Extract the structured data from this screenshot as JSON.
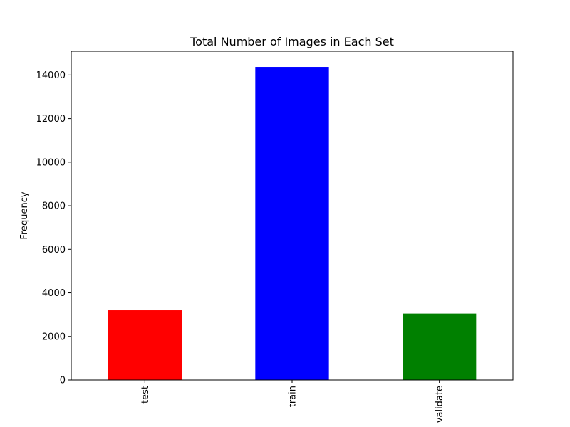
{
  "chart_data": {
    "type": "bar",
    "title": "Total Number of Images in Each Set",
    "xlabel": "",
    "ylabel": "Frequency",
    "categories": [
      "test",
      "train",
      "validate"
    ],
    "values": [
      3200,
      14370,
      3050
    ],
    "colors": [
      "#ff0000",
      "#0000ff",
      "#008000"
    ],
    "ylim": [
      0,
      15090
    ],
    "yticks": [
      0,
      2000,
      4000,
      6000,
      8000,
      10000,
      12000,
      14000
    ],
    "grid": false,
    "legend": "none"
  }
}
